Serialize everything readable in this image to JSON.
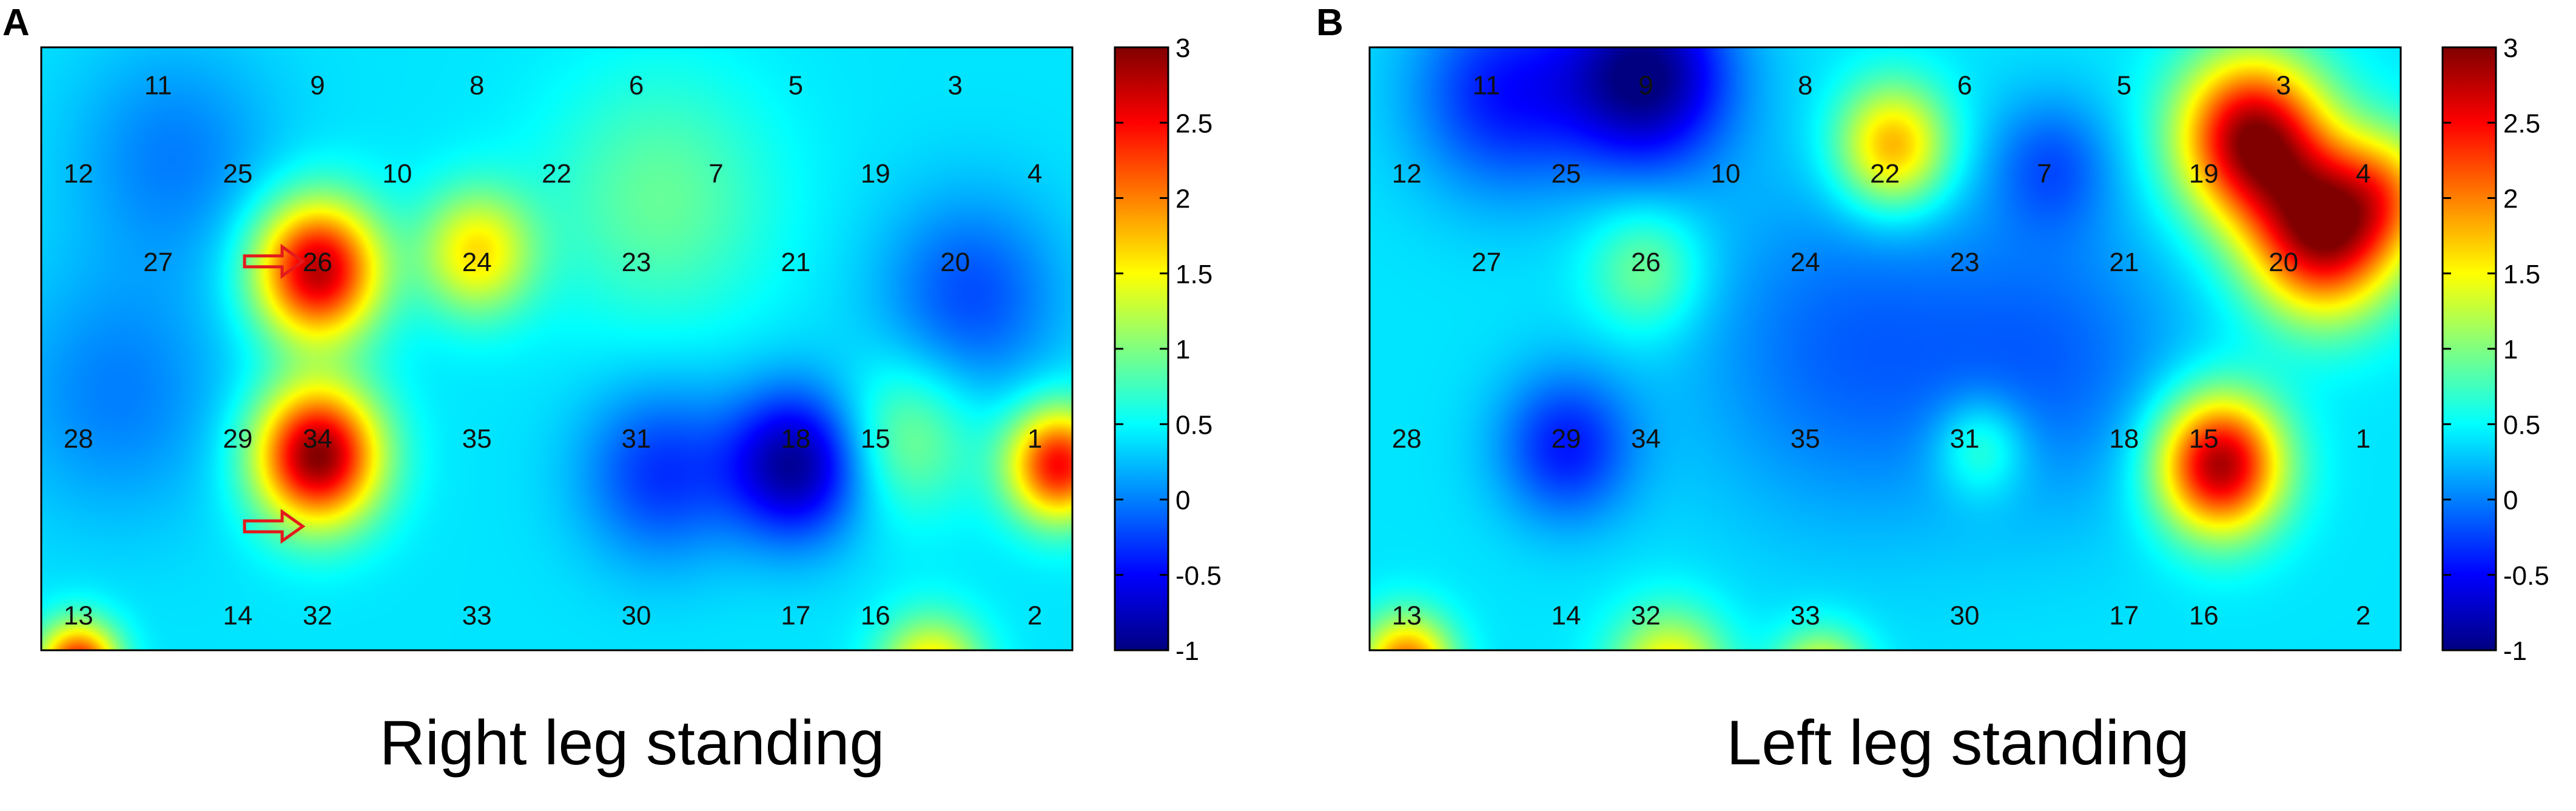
{
  "chart_data": [
    {
      "type": "heatmap",
      "panel_label": "A",
      "caption": "Right leg standing",
      "colorbar": {
        "min": -1,
        "max": 3,
        "ticks": [
          "3",
          "2.5",
          "2",
          "1.5",
          "1",
          "0.5",
          "0",
          "-0.5",
          "-1"
        ]
      },
      "electrodes": [
        {
          "label": "11",
          "col": 1,
          "row": 0
        },
        {
          "label": "9",
          "col": 3,
          "row": 0
        },
        {
          "label": "8",
          "col": 5,
          "row": 0
        },
        {
          "label": "6",
          "col": 7,
          "row": 0
        },
        {
          "label": "5",
          "col": 9,
          "row": 0
        },
        {
          "label": "3",
          "col": 11,
          "row": 0
        },
        {
          "label": "12",
          "col": 0,
          "row": 1
        },
        {
          "label": "25",
          "col": 2,
          "row": 1
        },
        {
          "label": "10",
          "col": 4,
          "row": 1
        },
        {
          "label": "22",
          "col": 6,
          "row": 1
        },
        {
          "label": "7",
          "col": 8,
          "row": 1
        },
        {
          "label": "19",
          "col": 10,
          "row": 1
        },
        {
          "label": "4",
          "col": 12,
          "row": 1
        },
        {
          "label": "27",
          "col": 1,
          "row": 2
        },
        {
          "label": "26",
          "col": 3,
          "row": 2
        },
        {
          "label": "24",
          "col": 5,
          "row": 2
        },
        {
          "label": "23",
          "col": 7,
          "row": 2
        },
        {
          "label": "21",
          "col": 9,
          "row": 2
        },
        {
          "label": "20",
          "col": 11,
          "row": 2
        },
        {
          "label": "28",
          "col": 0,
          "row": 4
        },
        {
          "label": "29",
          "col": 2,
          "row": 4
        },
        {
          "label": "34",
          "col": 3,
          "row": 4
        },
        {
          "label": "35",
          "col": 5,
          "row": 4
        },
        {
          "label": "31",
          "col": 7,
          "row": 4
        },
        {
          "label": "18",
          "col": 9,
          "row": 4
        },
        {
          "label": "15",
          "col": 10,
          "row": 4
        },
        {
          "label": "1",
          "col": 12,
          "row": 4
        },
        {
          "label": "13",
          "col": 0,
          "row": 6
        },
        {
          "label": "14",
          "col": 2,
          "row": 6
        },
        {
          "label": "32",
          "col": 3,
          "row": 6
        },
        {
          "label": "33",
          "col": 5,
          "row": 6
        },
        {
          "label": "30",
          "col": 7,
          "row": 6
        },
        {
          "label": "17",
          "col": 9,
          "row": 6
        },
        {
          "label": "16",
          "col": 10,
          "row": 6
        },
        {
          "label": "2",
          "col": 12,
          "row": 6
        }
      ],
      "background_value": 0.4,
      "blobs": [
        {
          "x": 3,
          "y": 2.1,
          "value": 2.8,
          "s": 0.55
        },
        {
          "x": 5,
          "y": 1.9,
          "value": 1.6,
          "s": 0.5
        },
        {
          "x": 7.3,
          "y": 1.3,
          "value": 0.9,
          "s": 1.0
        },
        {
          "x": 3,
          "y": 4.2,
          "value": 3.0,
          "s": 0.55
        },
        {
          "x": 9,
          "y": 4.3,
          "value": -0.9,
          "s": 0.6
        },
        {
          "x": 7.3,
          "y": 4.4,
          "value": -0.3,
          "s": 0.7
        },
        {
          "x": 12.3,
          "y": 4.3,
          "value": 2.5,
          "s": 0.45
        },
        {
          "x": 11.2,
          "y": 2.4,
          "value": -0.2,
          "s": 0.8
        },
        {
          "x": 1.2,
          "y": 0.8,
          "value": 0.0,
          "s": 0.9
        },
        {
          "x": 0.5,
          "y": 3.5,
          "value": 0.0,
          "s": 1.0
        },
        {
          "x": 10.4,
          "y": 4.0,
          "value": 1.0,
          "s": 0.6
        },
        {
          "x": 0.0,
          "y": 6.6,
          "value": 2.6,
          "s": 0.35
        },
        {
          "x": 10.7,
          "y": 6.7,
          "value": 1.8,
          "s": 0.45
        }
      ],
      "arrows": [
        {
          "col": 2.45,
          "row": 2.0
        },
        {
          "col": 2.45,
          "row": 5.0
        }
      ]
    },
    {
      "type": "heatmap",
      "panel_label": "B",
      "caption": "Left leg standing",
      "colorbar": {
        "min": -1,
        "max": 3,
        "ticks": [
          "3",
          "2.5",
          "2",
          "1.5",
          "1",
          "0.5",
          "0",
          "-0.5",
          "-1"
        ]
      },
      "electrodes": [
        {
          "label": "11",
          "col": 1,
          "row": 0
        },
        {
          "label": "9",
          "col": 3,
          "row": 0
        },
        {
          "label": "8",
          "col": 5,
          "row": 0
        },
        {
          "label": "6",
          "col": 7,
          "row": 0
        },
        {
          "label": "5",
          "col": 9,
          "row": 0
        },
        {
          "label": "3",
          "col": 11,
          "row": 0
        },
        {
          "label": "12",
          "col": 0,
          "row": 1
        },
        {
          "label": "25",
          "col": 2,
          "row": 1
        },
        {
          "label": "10",
          "col": 4,
          "row": 1
        },
        {
          "label": "22",
          "col": 6,
          "row": 1
        },
        {
          "label": "7",
          "col": 8,
          "row": 1
        },
        {
          "label": "19",
          "col": 10,
          "row": 1
        },
        {
          "label": "4",
          "col": 12,
          "row": 1
        },
        {
          "label": "27",
          "col": 1,
          "row": 2
        },
        {
          "label": "26",
          "col": 3,
          "row": 2
        },
        {
          "label": "24",
          "col": 5,
          "row": 2
        },
        {
          "label": "23",
          "col": 7,
          "row": 2
        },
        {
          "label": "21",
          "col": 9,
          "row": 2
        },
        {
          "label": "20",
          "col": 11,
          "row": 2
        },
        {
          "label": "28",
          "col": 0,
          "row": 4
        },
        {
          "label": "29",
          "col": 2,
          "row": 4
        },
        {
          "label": "34",
          "col": 3,
          "row": 4
        },
        {
          "label": "35",
          "col": 5,
          "row": 4
        },
        {
          "label": "31",
          "col": 7,
          "row": 4
        },
        {
          "label": "18",
          "col": 9,
          "row": 4
        },
        {
          "label": "15",
          "col": 10,
          "row": 4
        },
        {
          "label": "1",
          "col": 12,
          "row": 4
        },
        {
          "label": "13",
          "col": 0,
          "row": 6
        },
        {
          "label": "14",
          "col": 2,
          "row": 6
        },
        {
          "label": "32",
          "col": 3,
          "row": 6
        },
        {
          "label": "33",
          "col": 5,
          "row": 6
        },
        {
          "label": "30",
          "col": 7,
          "row": 6
        },
        {
          "label": "17",
          "col": 9,
          "row": 6
        },
        {
          "label": "16",
          "col": 10,
          "row": 6
        },
        {
          "label": "2",
          "col": 12,
          "row": 6
        }
      ],
      "background_value": 0.4,
      "blobs": [
        {
          "x": 3,
          "y": -0.1,
          "value": -1.0,
          "s": 0.75
        },
        {
          "x": 1.2,
          "y": 0.1,
          "value": -0.4,
          "s": 0.8
        },
        {
          "x": 6.1,
          "y": 0.7,
          "value": 1.9,
          "s": 0.5
        },
        {
          "x": 10.6,
          "y": 0.6,
          "value": 2.9,
          "s": 0.65
        },
        {
          "x": 11.5,
          "y": 1.7,
          "value": 2.8,
          "s": 0.65
        },
        {
          "x": 12.3,
          "y": 1.2,
          "value": 1.4,
          "s": 0.5
        },
        {
          "x": 8.1,
          "y": 0.9,
          "value": -0.1,
          "s": 0.55
        },
        {
          "x": 10.2,
          "y": 4.3,
          "value": 2.9,
          "s": 0.55
        },
        {
          "x": 3,
          "y": 2.1,
          "value": 1.0,
          "s": 0.5
        },
        {
          "x": 2.0,
          "y": 4.1,
          "value": -0.4,
          "s": 0.6
        },
        {
          "x": 5.5,
          "y": 3.0,
          "value": -0.1,
          "s": 1.4
        },
        {
          "x": 8.2,
          "y": 3.1,
          "value": -0.05,
          "s": 1.2
        },
        {
          "x": 0.0,
          "y": 6.6,
          "value": 2.2,
          "s": 0.4
        },
        {
          "x": 3.3,
          "y": 6.7,
          "value": 1.7,
          "s": 0.5
        },
        {
          "x": 5.2,
          "y": 6.8,
          "value": 1.8,
          "s": 0.4
        },
        {
          "x": 7.2,
          "y": 4.1,
          "value": 1.0,
          "s": 0.4
        }
      ],
      "arrows": []
    }
  ]
}
